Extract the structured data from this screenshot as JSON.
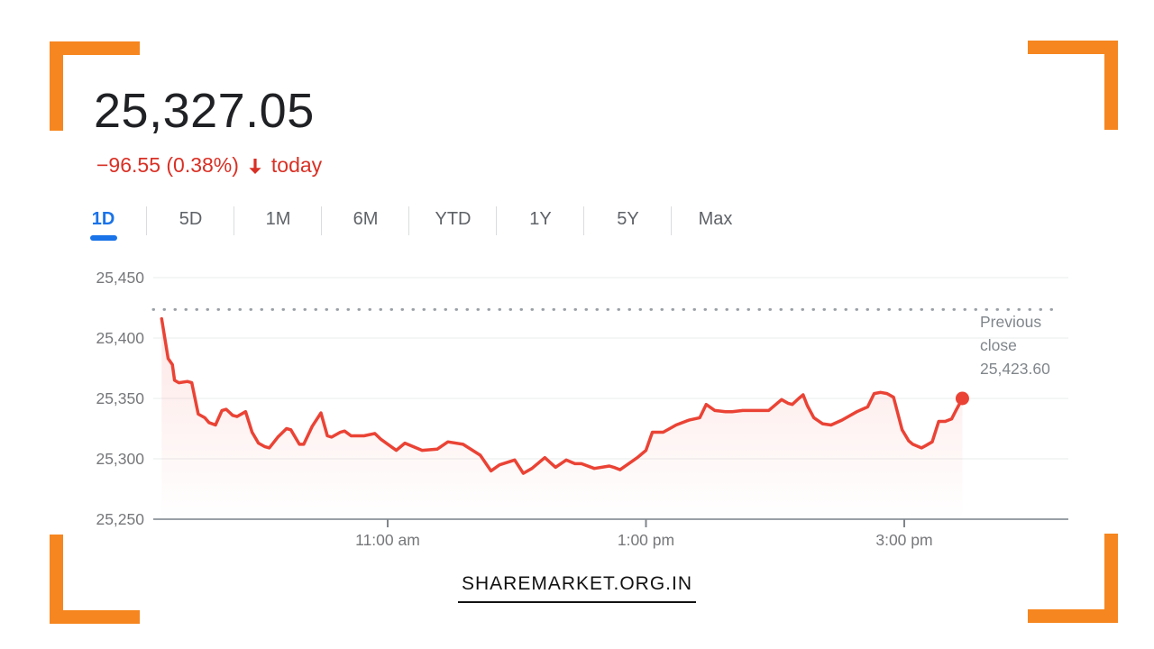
{
  "header": {
    "price": "25,327.05",
    "change_text": "−96.55 (0.38%)",
    "period_label": "today"
  },
  "tabs": [
    {
      "label": "1D",
      "active": true
    },
    {
      "label": "5D",
      "active": false
    },
    {
      "label": "1M",
      "active": false
    },
    {
      "label": "6M",
      "active": false
    },
    {
      "label": "YTD",
      "active": false
    },
    {
      "label": "1Y",
      "active": false
    },
    {
      "label": "5Y",
      "active": false
    },
    {
      "label": "Max",
      "active": false
    }
  ],
  "watermark": {
    "text": "SHAREMARKET.ORG.IN"
  },
  "colors": {
    "accent_blue": "#1a73e8",
    "change_red": "#d93025",
    "line_red": "#ea4335",
    "bracket_orange": "#F6861F",
    "axis_gray": "#9aa0a6",
    "label_gray": "#76777a"
  },
  "chart_data": {
    "type": "line",
    "title": "Intraday index price",
    "xlabel": "",
    "ylabel": "",
    "x_unit": "minutes since 9:15 am session open",
    "session": {
      "start_min": 0,
      "end_min": 375
    },
    "x_ticks": [
      {
        "min": 105,
        "label": "11:00 am"
      },
      {
        "min": 225,
        "label": "1:00 pm"
      },
      {
        "min": 345,
        "label": "3:00 pm"
      }
    ],
    "y_ticks": [
      {
        "value": 25450,
        "label": "25,450"
      },
      {
        "value": 25400,
        "label": "25,400"
      },
      {
        "value": 25350,
        "label": "25,350"
      },
      {
        "value": 25300,
        "label": "25,300"
      },
      {
        "value": 25250,
        "label": "25,250"
      }
    ],
    "y_range": [
      25250,
      25450
    ],
    "grid": true,
    "legend": "none",
    "previous_close": {
      "label": "Previous close",
      "value": 25423.6,
      "value_text": "25,423.60"
    },
    "end_marker": true,
    "points": [
      [
        0,
        25416
      ],
      [
        3,
        25383
      ],
      [
        5,
        25378
      ],
      [
        6,
        25365
      ],
      [
        8,
        25363
      ],
      [
        12,
        25364
      ],
      [
        14,
        25363
      ],
      [
        17,
        25337
      ],
      [
        20,
        25334
      ],
      [
        22,
        25330
      ],
      [
        25,
        25328
      ],
      [
        28,
        25340
      ],
      [
        30,
        25341
      ],
      [
        33,
        25336
      ],
      [
        35,
        25335
      ],
      [
        39,
        25339
      ],
      [
        42,
        25322
      ],
      [
        45,
        25313
      ],
      [
        48,
        25310
      ],
      [
        50,
        25309
      ],
      [
        54,
        25318
      ],
      [
        58,
        25325
      ],
      [
        60,
        25324
      ],
      [
        64,
        25312
      ],
      [
        66,
        25312
      ],
      [
        70,
        25327
      ],
      [
        74,
        25338
      ],
      [
        77,
        25319
      ],
      [
        79,
        25318
      ],
      [
        83,
        25322
      ],
      [
        85,
        25323
      ],
      [
        88,
        25319
      ],
      [
        94,
        25319
      ],
      [
        99,
        25321
      ],
      [
        102,
        25316
      ],
      [
        109,
        25307
      ],
      [
        113,
        25313
      ],
      [
        121,
        25307
      ],
      [
        128,
        25308
      ],
      [
        133,
        25314
      ],
      [
        140,
        25312
      ],
      [
        148,
        25303
      ],
      [
        153,
        25290
      ],
      [
        157,
        25295
      ],
      [
        164,
        25299
      ],
      [
        168,
        25288
      ],
      [
        172,
        25292
      ],
      [
        178,
        25301
      ],
      [
        183,
        25293
      ],
      [
        188,
        25299
      ],
      [
        192,
        25296
      ],
      [
        195,
        25296
      ],
      [
        201,
        25292
      ],
      [
        208,
        25294
      ],
      [
        210,
        25293
      ],
      [
        213,
        25291
      ],
      [
        221,
        25301
      ],
      [
        225,
        25307
      ],
      [
        228,
        25322
      ],
      [
        233,
        25322
      ],
      [
        236,
        25325
      ],
      [
        239,
        25328
      ],
      [
        245,
        25332
      ],
      [
        250,
        25334
      ],
      [
        253,
        25345
      ],
      [
        257,
        25340
      ],
      [
        262,
        25339
      ],
      [
        265,
        25339
      ],
      [
        270,
        25340
      ],
      [
        277,
        25340
      ],
      [
        282,
        25340
      ],
      [
        288,
        25349
      ],
      [
        291,
        25346
      ],
      [
        293,
        25345
      ],
      [
        296,
        25350
      ],
      [
        298,
        25353
      ],
      [
        300,
        25344
      ],
      [
        303,
        25334
      ],
      [
        307,
        25329
      ],
      [
        311,
        25328
      ],
      [
        316,
        25332
      ],
      [
        319,
        25335
      ],
      [
        323,
        25339
      ],
      [
        328,
        25343
      ],
      [
        331,
        25354
      ],
      [
        334,
        25355
      ],
      [
        337,
        25354
      ],
      [
        340,
        25351
      ],
      [
        344,
        25324
      ],
      [
        347,
        25315
      ],
      [
        349,
        25312
      ],
      [
        353,
        25309
      ],
      [
        355,
        25311
      ],
      [
        358,
        25314
      ],
      [
        361,
        25331
      ],
      [
        364,
        25331
      ],
      [
        367,
        25333
      ],
      [
        369,
        25340
      ],
      [
        372,
        25350
      ]
    ]
  }
}
